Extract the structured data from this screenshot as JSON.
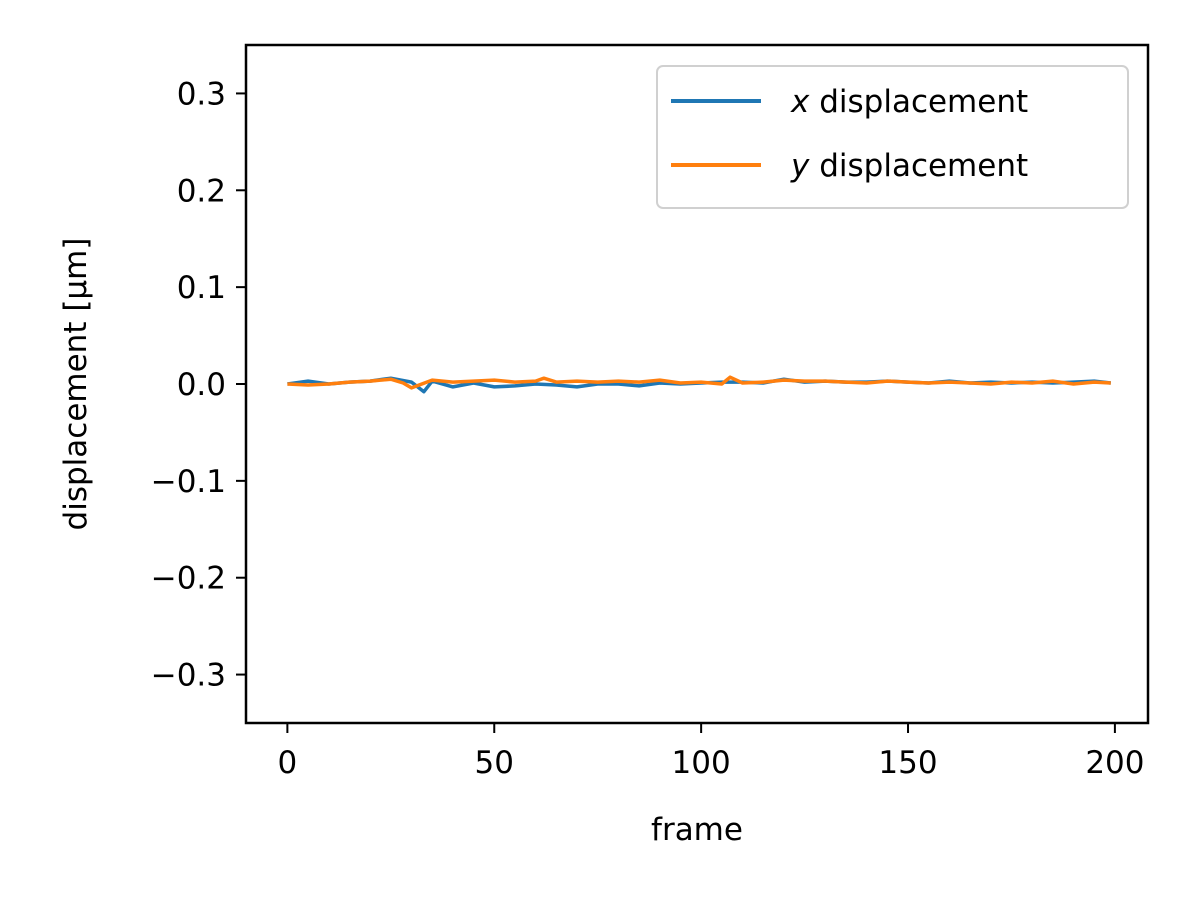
{
  "chart_data": {
    "type": "line",
    "title": "",
    "xlabel": "frame",
    "ylabel": "displacement [μm]",
    "xlim": [
      -10,
      208
    ],
    "ylim": [
      -0.35,
      0.35
    ],
    "xticks": [
      0,
      50,
      100,
      150,
      200
    ],
    "xtick_labels": [
      "0",
      "50",
      "100",
      "150",
      "200"
    ],
    "yticks": [
      0.3,
      0.2,
      0.1,
      0.0,
      -0.1,
      -0.2,
      -0.3
    ],
    "ytick_labels": [
      "0.3",
      "0.2",
      "0.1",
      "0.0",
      "−0.1",
      "−0.2",
      "−0.3"
    ],
    "grid": false,
    "legend_position": "top-right",
    "series": [
      {
        "name": "x displacement",
        "legend_var": "x",
        "legend_rest": " displacement",
        "color": "#1f77b4",
        "x": [
          0,
          5,
          10,
          15,
          20,
          25,
          30,
          33,
          35,
          40,
          45,
          50,
          55,
          60,
          65,
          70,
          75,
          80,
          85,
          90,
          95,
          100,
          105,
          110,
          115,
          120,
          125,
          130,
          135,
          140,
          145,
          150,
          155,
          160,
          165,
          170,
          175,
          180,
          185,
          190,
          195,
          199
        ],
        "y": [
          0.0,
          0.003,
          0.0,
          0.002,
          0.003,
          0.006,
          0.002,
          -0.008,
          0.003,
          -0.003,
          0.001,
          -0.003,
          -0.002,
          0.0,
          -0.001,
          -0.003,
          0.0,
          0.0,
          -0.002,
          0.001,
          0.0,
          0.001,
          0.002,
          0.002,
          0.001,
          0.005,
          0.002,
          0.003,
          0.002,
          0.002,
          0.003,
          0.002,
          0.001,
          0.003,
          0.001,
          0.002,
          0.001,
          0.002,
          0.001,
          0.002,
          0.003,
          0.001
        ]
      },
      {
        "name": "y displacement",
        "legend_var": "y",
        "legend_rest": " displacement",
        "color": "#ff7f0e",
        "x": [
          0,
          5,
          10,
          15,
          20,
          25,
          28,
          30,
          35,
          40,
          45,
          50,
          55,
          60,
          62,
          65,
          70,
          75,
          80,
          85,
          90,
          95,
          100,
          105,
          107,
          110,
          115,
          120,
          125,
          130,
          135,
          140,
          145,
          150,
          155,
          160,
          165,
          170,
          175,
          180,
          185,
          190,
          195,
          199
        ],
        "y": [
          0.0,
          -0.001,
          0.0,
          0.002,
          0.003,
          0.005,
          0.001,
          -0.004,
          0.004,
          0.002,
          0.003,
          0.004,
          0.002,
          0.003,
          0.006,
          0.002,
          0.003,
          0.002,
          0.003,
          0.002,
          0.004,
          0.001,
          0.002,
          0.0,
          0.007,
          0.001,
          0.002,
          0.004,
          0.003,
          0.003,
          0.002,
          0.001,
          0.003,
          0.002,
          0.001,
          0.002,
          0.001,
          0.0,
          0.002,
          0.001,
          0.003,
          0.0,
          0.002,
          0.001
        ]
      }
    ]
  }
}
